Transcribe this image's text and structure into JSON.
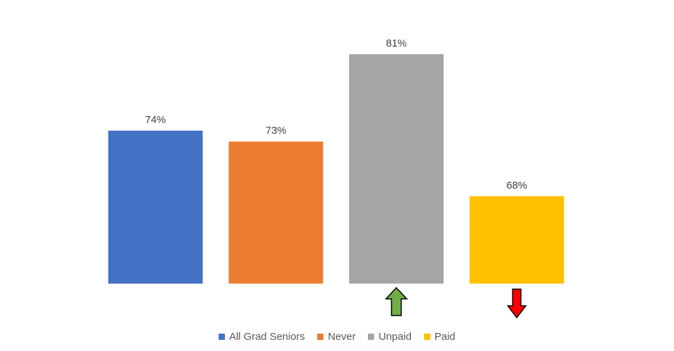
{
  "chart_data": {
    "type": "bar",
    "categories": [
      "All Grad Seniors",
      "Never",
      "Unpaid",
      "Paid"
    ],
    "values": [
      74,
      73,
      81,
      68
    ],
    "value_labels": [
      "74%",
      "73%",
      "81%",
      "68%"
    ],
    "colors": [
      "#4472C4",
      "#ED7D31",
      "#A5A5A5",
      "#FFC000"
    ],
    "ylim": [
      60,
      82
    ],
    "title": "",
    "xlabel": "",
    "ylabel": "",
    "grid": false,
    "legend_position": "bottom",
    "annotations": [
      {
        "category": "Unpaid",
        "type": "arrow-up",
        "color": "#70AD47"
      },
      {
        "category": "Paid",
        "type": "arrow-down",
        "color": "#FF0000"
      }
    ]
  },
  "legend": [
    {
      "label": "All Grad Seniors",
      "color": "#4472C4"
    },
    {
      "label": "Never",
      "color": "#ED7D31"
    },
    {
      "label": "Unpaid",
      "color": "#A5A5A5"
    },
    {
      "label": "Paid",
      "color": "#FFC000"
    }
  ]
}
